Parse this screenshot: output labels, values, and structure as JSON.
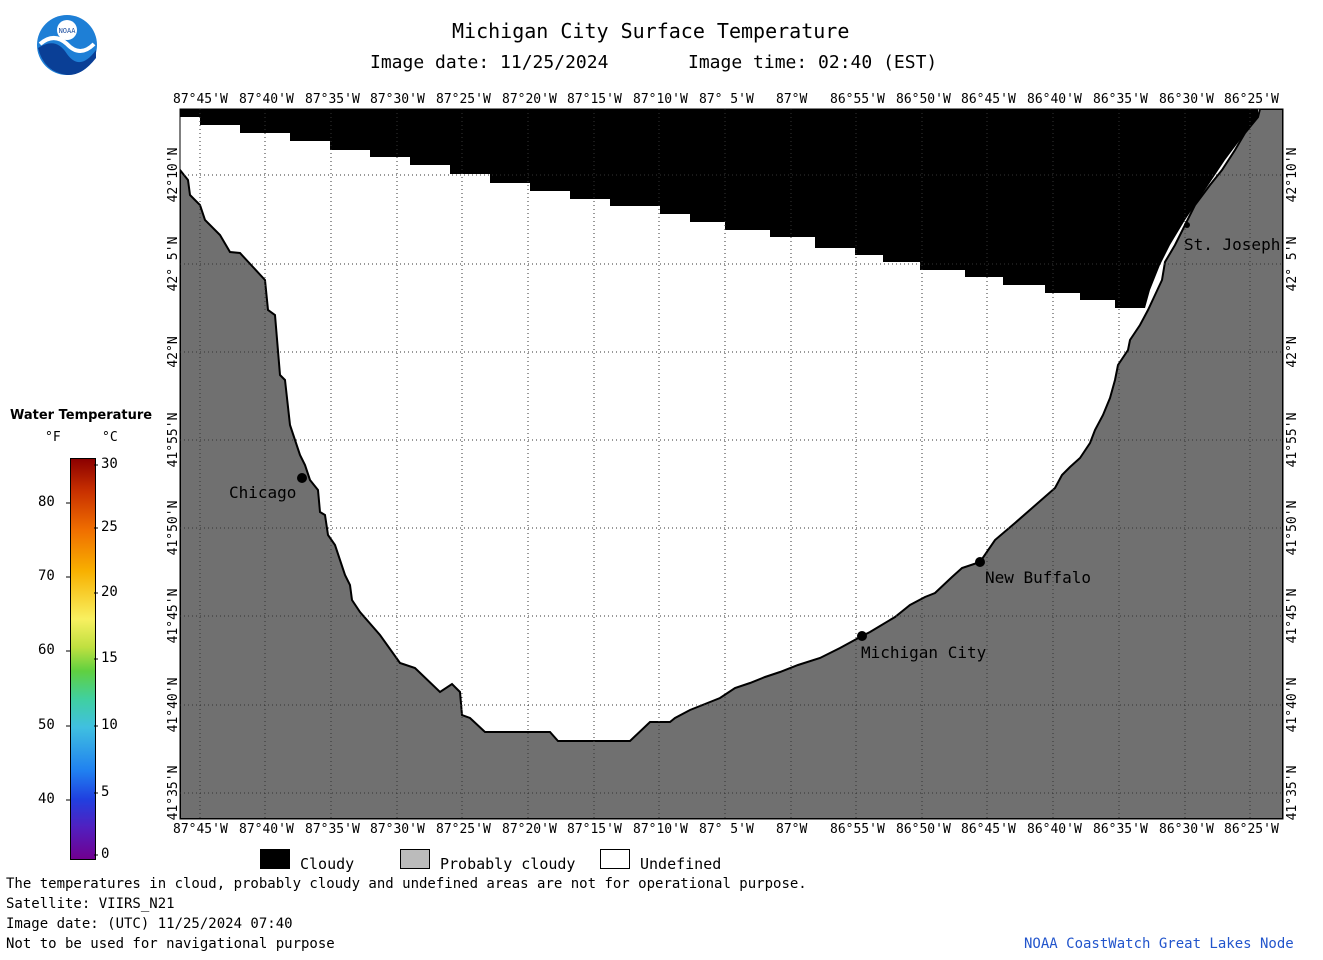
{
  "header": {
    "title": "Michigan City Surface Temperature",
    "image_date": "Image date: 11/25/2024",
    "image_time": "Image time: 02:40 (EST)"
  },
  "logo": {
    "text": "NOAA"
  },
  "longitudes": [
    "87°45'W",
    "87°40'W",
    "87°35'W",
    "87°30'W",
    "87°25'W",
    "87°20'W",
    "87°15'W",
    "87°10'W",
    "87° 5'W",
    "87°W",
    "86°55'W",
    "86°50'W",
    "86°45'W",
    "86°40'W",
    "86°35'W",
    "86°30'W",
    "86°25'W"
  ],
  "latitudes": [
    "42°10'N",
    "42° 5'N",
    "42°N",
    "41°55'N",
    "41°50'N",
    "41°45'N",
    "41°40'N",
    "41°35'N"
  ],
  "cities": [
    {
      "name": "Chicago"
    },
    {
      "name": "Michigan City"
    },
    {
      "name": "New Buffalo"
    },
    {
      "name": "St. Joseph"
    }
  ],
  "colorbar": {
    "title": "Water Temperature",
    "unit_f": "°F",
    "unit_c": "°C",
    "f_ticks": [
      "80",
      "70",
      "60",
      "50",
      "40"
    ],
    "c_ticks": [
      "30",
      "25",
      "20",
      "15",
      "10",
      "5",
      "0"
    ]
  },
  "legend": {
    "cloudy": "Cloudy",
    "probably_cloudy": "Probably cloudy",
    "undefined": "Undefined",
    "colors": {
      "cloudy": "#000000",
      "probably_cloudy": "#bbbbbb",
      "undefined": "#ffffff",
      "land": "#707070"
    }
  },
  "footer": {
    "line1": "The temperatures in cloud, probably cloudy and undefined areas are not for operational purpose.",
    "line2": "Satellite: VIIRS_N21",
    "line3": "Image date: (UTC) 11/25/2024  07:40",
    "line4": "Not to be used for navigational purpose",
    "credit": "NOAA CoastWatch Great Lakes Node"
  }
}
